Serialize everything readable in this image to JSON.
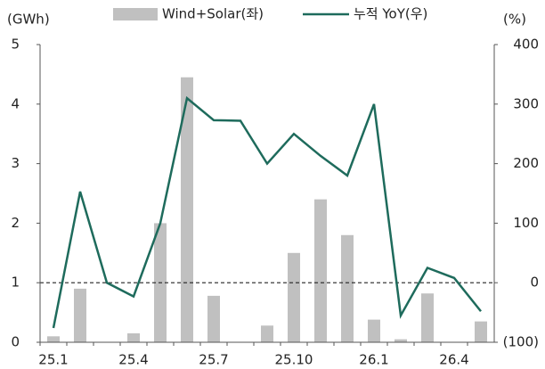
{
  "chart_data": {
    "type": "bar_line",
    "y_axis_label": "(GWh)",
    "y2_axis_label": "(%)",
    "categories": [
      "25.1",
      null,
      null,
      "25.4",
      null,
      null,
      "25.7",
      null,
      null,
      "25.10",
      null,
      null,
      "26.1",
      null,
      null,
      "26.4",
      null
    ],
    "series": [
      {
        "name": "Wind+Solar(좌)",
        "type": "bar",
        "color": "#c0c0c0",
        "values": [
          0.1,
          0.9,
          0,
          0.15,
          2.0,
          4.45,
          0.78,
          0,
          0.28,
          1.5,
          2.4,
          1.8,
          0.38,
          0.05,
          0.82,
          0,
          0.35
        ]
      },
      {
        "name": "누적 YoY(우)",
        "type": "line",
        "axis": "y2",
        "color": "#1e6b5c",
        "values": [
          -76,
          153,
          0,
          -23,
          100,
          310,
          273,
          272,
          200,
          250,
          213,
          180,
          300,
          -55,
          25,
          8,
          -48
        ]
      }
    ],
    "ylim": [
      0,
      5
    ],
    "yticks": [
      0,
      1,
      2,
      3,
      4,
      5
    ],
    "y2lim": [
      -100,
      400
    ],
    "y2ticks": [
      {
        "value": -100,
        "label": "(100)"
      },
      0,
      100,
      200,
      300,
      400
    ],
    "reference_line": {
      "axis": "y2",
      "value": 0
    }
  }
}
